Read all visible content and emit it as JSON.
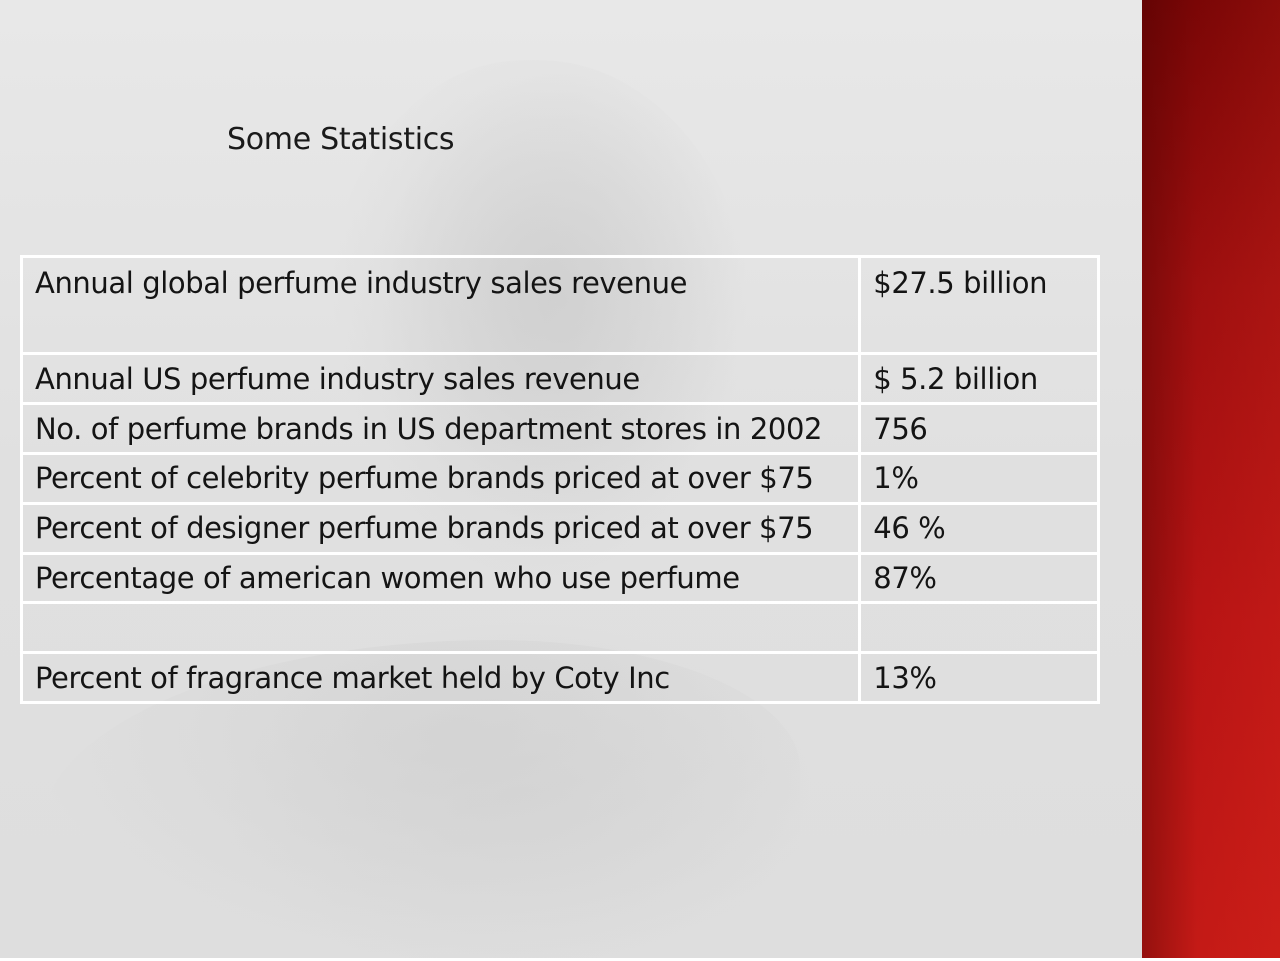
{
  "slide": {
    "title": "Some Statistics",
    "accent_color": "#b81414"
  },
  "table": {
    "rows": [
      {
        "label": "Annual global perfume industry sales revenue",
        "value": "$27.5 billion"
      },
      {
        "label": "Annual US perfume industry sales revenue",
        "value": "$ 5.2 billion"
      },
      {
        "label": "No. of perfume brands in US department stores in 2002",
        "value": "756"
      },
      {
        "label": "Percent of celebrity perfume brands priced at over $75",
        "value": "1%"
      },
      {
        "label": "Percent of designer perfume brands priced at over $75",
        "value": "46 %"
      },
      {
        "label": "Percentage of american women who use perfume",
        "value": "87%"
      },
      {
        "label": "",
        "value": ""
      },
      {
        "label": "Percent of fragrance market held by Coty Inc",
        "value": "13%"
      }
    ]
  }
}
